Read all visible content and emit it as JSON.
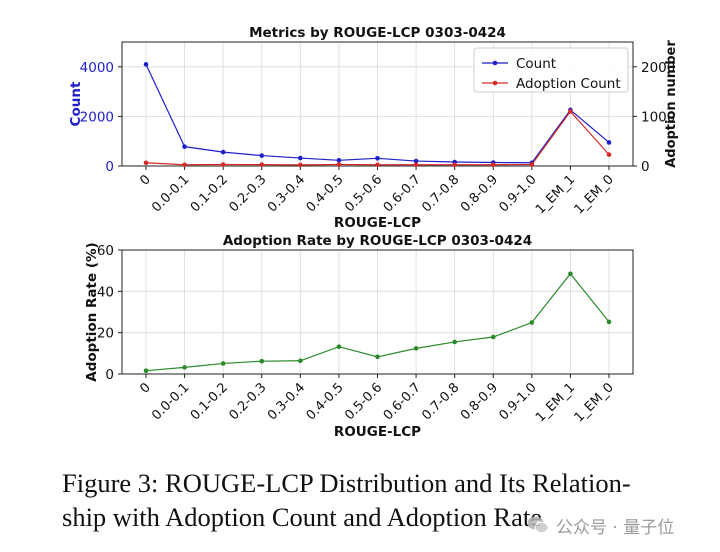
{
  "chart_data": [
    {
      "type": "line",
      "title": "Metrics by ROUGE-LCP 0303-0424",
      "xlabel": "ROUGE-LCP",
      "ylabel": "Count",
      "y2label": "Adoption number",
      "categories": [
        "0",
        "0.0-0.1",
        "0.1-0.2",
        "0.2-0.3",
        "0.3-0.4",
        "0.4-0.5",
        "0.5-0.6",
        "0.6-0.7",
        "0.7-0.8",
        "0.8-0.9",
        "0.9-1.0",
        "1_EM_1",
        "1_EM_0"
      ],
      "ylim": [
        0,
        5000
      ],
      "y2lim": [
        0,
        2500
      ],
      "yticks": [
        0,
        2000,
        4000
      ],
      "y2ticks": [
        0,
        1000,
        2000
      ],
      "grid": true,
      "legend_position": "top-right",
      "series": [
        {
          "name": "Count",
          "axis": "left",
          "color": "#1f1fc8",
          "values": [
            4100,
            780,
            560,
            420,
            320,
            230,
            310,
            200,
            160,
            140,
            130,
            2260,
            950
          ]
        },
        {
          "name": "Adoption Count",
          "axis": "right",
          "color": "#d42a2a",
          "values": [
            65,
            25,
            30,
            28,
            22,
            30,
            25,
            25,
            25,
            25,
            30,
            1100,
            230
          ]
        }
      ]
    },
    {
      "type": "line",
      "title": "Adoption Rate by ROUGE-LCP 0303-0424",
      "xlabel": "ROUGE-LCP",
      "ylabel": "Adoption Rate (%)",
      "categories": [
        "0",
        "0.0-0.1",
        "0.1-0.2",
        "0.2-0.3",
        "0.3-0.4",
        "0.4-0.5",
        "0.5-0.6",
        "0.6-0.7",
        "0.7-0.8",
        "0.8-0.9",
        "0.9-1.0",
        "1_EM_1",
        "1_EM_0"
      ],
      "ylim": [
        0,
        60
      ],
      "yticks": [
        0,
        20,
        40,
        60
      ],
      "grid": true,
      "series": [
        {
          "color": "#2a8a2a",
          "values": [
            1.6,
            3.2,
            5.1,
            6.2,
            6.4,
            13.2,
            8.3,
            12.4,
            15.5,
            17.9,
            24.9,
            48.5,
            25.2
          ]
        }
      ]
    }
  ],
  "caption": {
    "line1": "Figure 3: ROUGE-LCP Distribution and Its Relation-",
    "line2": "ship with Adoption Count and Adoption Rate"
  },
  "watermark": {
    "text": "公众号 · 量子位",
    "icon": "wechat-icon"
  }
}
